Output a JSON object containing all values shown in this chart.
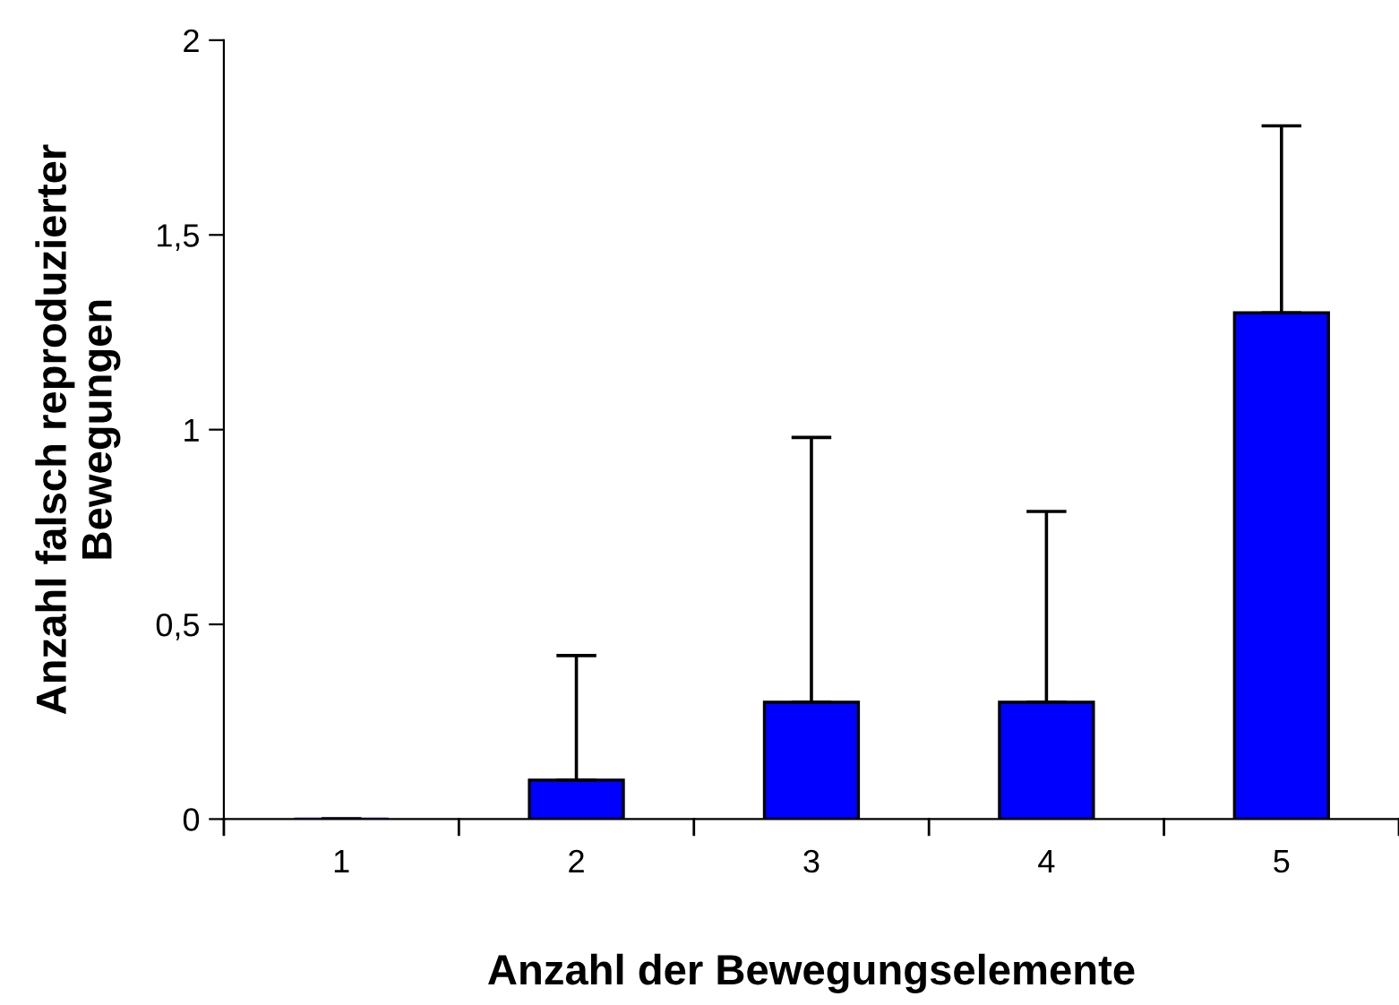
{
  "chart_data": {
    "type": "bar",
    "xlabel": "Anzahl der Bewegungselemente",
    "ylabel": "Anzahl falsch reproduzierter\nBewegungen",
    "categories": [
      "1",
      "2",
      "3",
      "4",
      "5"
    ],
    "series": [
      {
        "color": "#0000ff",
        "values": [
          0,
          0.1,
          0.3,
          0.3,
          1.3
        ],
        "errors": [
          [
            0,
            0
          ],
          [
            0.1,
            0.42
          ],
          [
            0.3,
            0.98
          ],
          [
            0.3,
            0.79
          ],
          [
            1.3,
            1.78
          ]
        ]
      }
    ],
    "ylim": [
      0,
      2
    ],
    "yticks": [
      {
        "value": 0,
        "label": "0"
      },
      {
        "value": 0.5,
        "label": "0,5"
      },
      {
        "value": 1,
        "label": "1"
      },
      {
        "value": 1.5,
        "label": "1,5"
      },
      {
        "value": 2,
        "label": "2"
      }
    ],
    "grid": false,
    "legend": false
  }
}
